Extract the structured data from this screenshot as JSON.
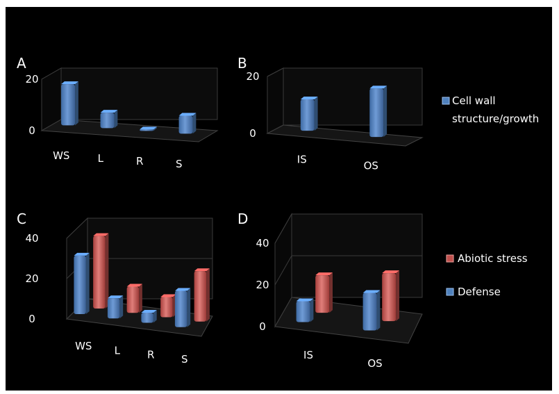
{
  "colors": {
    "background": "#000000",
    "text": "#ffffff",
    "blue": "#4f81bd",
    "red": "#c0504d"
  },
  "legends": {
    "top": [
      "Cell wall",
      "structure/growth"
    ],
    "bottom": [
      "Abiotic stress",
      "Defense"
    ]
  },
  "chart_data": [
    {
      "panel": "A",
      "type": "bar",
      "categories": [
        "WS",
        "L",
        "R",
        "S"
      ],
      "series": [
        {
          "name": "Cell wall structure/growth",
          "values": [
            16,
            6,
            0,
            7
          ]
        }
      ],
      "ylim": [
        0,
        20
      ],
      "yticks": [
        0,
        20
      ]
    },
    {
      "panel": "B",
      "type": "bar",
      "categories": [
        "IS",
        "OS"
      ],
      "series": [
        {
          "name": "Cell wall structure/growth",
          "values": [
            11,
            17
          ]
        }
      ],
      "ylim": [
        0,
        20
      ],
      "yticks": [
        0,
        20
      ]
    },
    {
      "panel": "C",
      "type": "bar",
      "categories": [
        "WS",
        "L",
        "R",
        "S"
      ],
      "series": [
        {
          "name": "Defense",
          "values": [
            29,
            10,
            5,
            18
          ]
        },
        {
          "name": "Abiotic stress",
          "values": [
            36,
            13,
            10,
            25
          ]
        }
      ],
      "ylim": [
        0,
        40
      ],
      "yticks": [
        0,
        20,
        40
      ]
    },
    {
      "panel": "D",
      "type": "bar",
      "categories": [
        "IS",
        "OS"
      ],
      "series": [
        {
          "name": "Defense",
          "values": [
            10,
            18
          ]
        },
        {
          "name": "Abiotic stress",
          "values": [
            18,
            23
          ]
        }
      ],
      "ylim": [
        0,
        40
      ],
      "yticks": [
        0,
        20,
        40
      ]
    }
  ]
}
